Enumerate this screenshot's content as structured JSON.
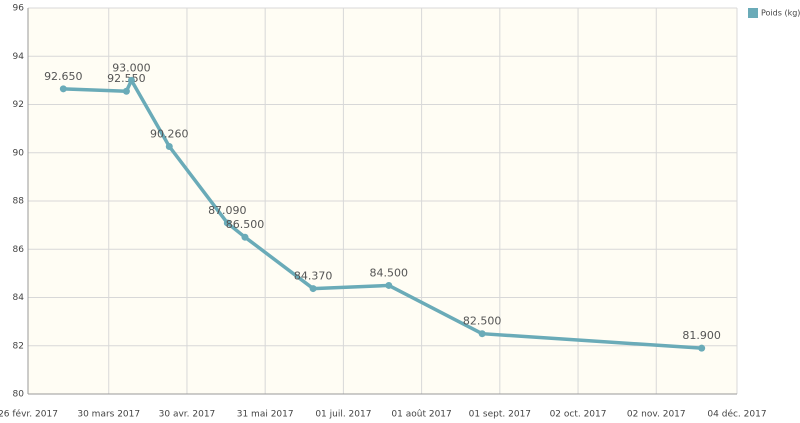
{
  "chart_data": {
    "type": "line",
    "x": [
      "2017-03-12",
      "2017-04-06",
      "2017-04-08",
      "2017-04-23",
      "2017-05-16",
      "2017-05-23",
      "2017-06-19",
      "2017-07-19",
      "2017-08-25",
      "2017-11-20"
    ],
    "series": [
      {
        "name": "Poids (kg)",
        "color": "#6aabb8",
        "values": [
          92.65,
          92.55,
          93.0,
          90.26,
          87.09,
          86.5,
          84.37,
          84.5,
          82.5,
          81.9
        ],
        "value_labels": [
          "92.650",
          "92.550",
          "93.000",
          "90.260",
          "87.090",
          "86.500",
          "84.370",
          "84.500",
          "82.500",
          "81.900"
        ]
      }
    ],
    "xlim": [
      "2017-02-26",
      "2017-12-04"
    ],
    "xticks": [
      {
        "value": "2017-02-26",
        "label": "26 févr. 2017"
      },
      {
        "value": "2017-03-30",
        "label": "30 mars 2017"
      },
      {
        "value": "2017-04-30",
        "label": "30 avr. 2017"
      },
      {
        "value": "2017-05-31",
        "label": "31 mai 2017"
      },
      {
        "value": "2017-07-01",
        "label": "01 juil. 2017"
      },
      {
        "value": "2017-08-01",
        "label": "01 août 2017"
      },
      {
        "value": "2017-09-01",
        "label": "01 sept. 2017"
      },
      {
        "value": "2017-10-02",
        "label": "02 oct. 2017"
      },
      {
        "value": "2017-11-02",
        "label": "02 nov. 2017"
      },
      {
        "value": "2017-12-04",
        "label": "04 déc. 2017"
      }
    ],
    "ylim": [
      80,
      96
    ],
    "yticks": [
      80,
      82,
      84,
      86,
      88,
      90,
      92,
      94,
      96
    ],
    "grid": true,
    "legend": "top-right"
  }
}
